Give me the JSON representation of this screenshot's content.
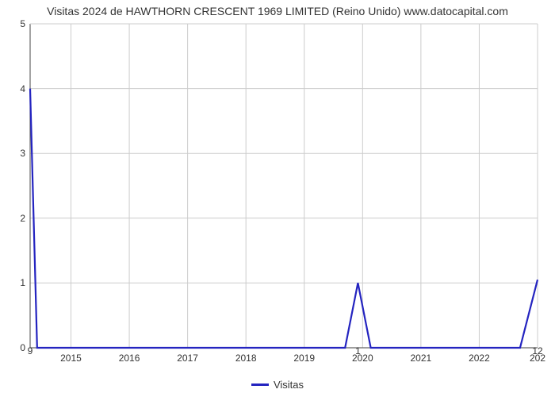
{
  "chart": {
    "type": "line",
    "title": "Visitas 2024 de HAWTHORN CRESCENT 1969 LIMITED (Reino Unido) www.datocapital.com",
    "title_fontsize": 14,
    "background_color": "#ffffff",
    "plot_border_color": "#666666",
    "grid_color": "#cccccc",
    "x": {
      "min": 2014.3,
      "max": 2023.0,
      "ticks": [
        2015,
        2016,
        2017,
        2018,
        2019,
        2020,
        2021,
        2022
      ],
      "last_label": "202",
      "label_fontsize": 12
    },
    "y": {
      "min": 0,
      "max": 5,
      "ticks": [
        0,
        1,
        2,
        3,
        4,
        5
      ],
      "label_fontsize": 12
    },
    "series": {
      "name": "Visitas",
      "color": "#2424c0",
      "line_width": 2.2,
      "points": [
        [
          2014.3,
          4.0
        ],
        [
          2014.42,
          0.0
        ],
        [
          2019.7,
          0.0
        ],
        [
          2019.92,
          1.0
        ],
        [
          2020.14,
          0.0
        ],
        [
          2022.7,
          0.0
        ],
        [
          2023.0,
          1.05
        ]
      ]
    },
    "spike_labels": [
      {
        "x": 2014.3,
        "text": "9"
      },
      {
        "x": 2019.92,
        "text": "1"
      },
      {
        "x": 2023.0,
        "text": "12"
      }
    ],
    "legend": {
      "label": "Visitas",
      "position": "bottom-center"
    }
  }
}
